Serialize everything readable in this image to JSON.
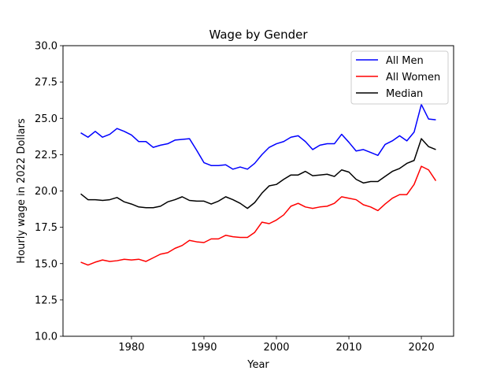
{
  "chart_data": {
    "type": "line",
    "title": "Wage by Gender",
    "xlabel": "Year",
    "ylabel": "Hourly wage in 2022 Dollars",
    "xlim": [
      1970.55,
      2024.45
    ],
    "ylim": [
      10.0,
      30.0
    ],
    "xticks": [
      1980,
      1990,
      2000,
      2010,
      2020
    ],
    "yticks": [
      10.0,
      12.5,
      15.0,
      17.5,
      20.0,
      22.5,
      25.0,
      27.5,
      30.0
    ],
    "grid": false,
    "legend_position": "top-right",
    "x": [
      1973,
      1974,
      1975,
      1976,
      1977,
      1978,
      1979,
      1980,
      1981,
      1982,
      1983,
      1984,
      1985,
      1986,
      1987,
      1988,
      1989,
      1990,
      1991,
      1992,
      1993,
      1994,
      1995,
      1996,
      1997,
      1998,
      1999,
      2000,
      2001,
      2002,
      2003,
      2004,
      2005,
      2006,
      2007,
      2008,
      2009,
      2010,
      2011,
      2012,
      2013,
      2014,
      2015,
      2016,
      2017,
      2018,
      2019,
      2020,
      2021,
      2022
    ],
    "series": [
      {
        "name": "All Men",
        "color": "#0000ff",
        "values": [
          24.0,
          23.7,
          24.1,
          23.7,
          23.9,
          24.3,
          24.1,
          23.85,
          23.4,
          23.4,
          23.0,
          23.15,
          23.25,
          23.5,
          23.55,
          23.6,
          22.8,
          21.95,
          21.75,
          21.75,
          21.8,
          21.5,
          21.65,
          21.5,
          21.9,
          22.5,
          23.0,
          23.25,
          23.4,
          23.7,
          23.8,
          23.4,
          22.85,
          23.15,
          23.25,
          23.25,
          23.9,
          23.35,
          22.75,
          22.85,
          22.65,
          22.45,
          23.2,
          23.45,
          23.8,
          23.45,
          24.05,
          25.95,
          24.95,
          24.9
        ]
      },
      {
        "name": "All Women",
        "color": "#ff0000",
        "values": [
          15.1,
          14.9,
          15.1,
          15.25,
          15.15,
          15.2,
          15.3,
          15.25,
          15.3,
          15.15,
          15.4,
          15.65,
          15.75,
          16.05,
          16.25,
          16.6,
          16.5,
          16.45,
          16.7,
          16.7,
          16.95,
          16.85,
          16.8,
          16.8,
          17.15,
          17.85,
          17.75,
          18.0,
          18.35,
          18.95,
          19.15,
          18.9,
          18.8,
          18.9,
          18.95,
          19.15,
          19.6,
          19.5,
          19.4,
          19.05,
          18.9,
          18.65,
          19.1,
          19.5,
          19.75,
          19.75,
          20.45,
          21.7,
          21.45,
          20.7
        ]
      },
      {
        "name": "Median",
        "color": "#000000",
        "values": [
          19.8,
          19.4,
          19.4,
          19.35,
          19.4,
          19.55,
          19.25,
          19.1,
          18.9,
          18.85,
          18.85,
          18.95,
          19.25,
          19.4,
          19.6,
          19.35,
          19.3,
          19.3,
          19.1,
          19.3,
          19.6,
          19.4,
          19.15,
          18.8,
          19.2,
          19.85,
          20.35,
          20.45,
          20.8,
          21.1,
          21.1,
          21.35,
          21.05,
          21.1,
          21.15,
          21.0,
          21.45,
          21.3,
          20.8,
          20.55,
          20.65,
          20.65,
          21.0,
          21.35,
          21.55,
          21.9,
          22.1,
          23.6,
          23.05,
          22.85
        ]
      }
    ]
  }
}
